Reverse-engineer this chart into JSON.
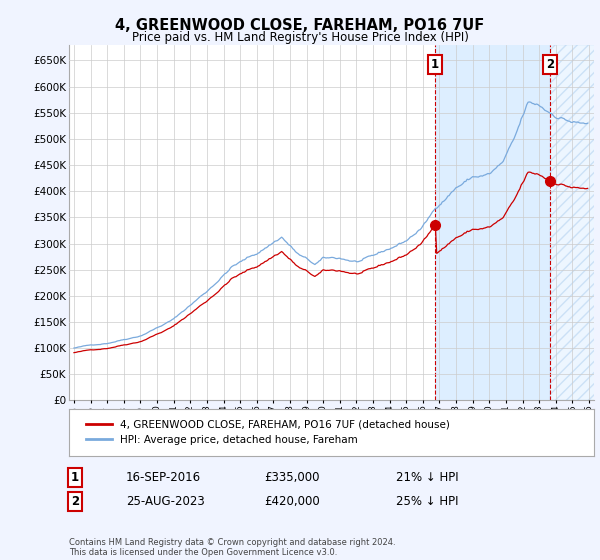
{
  "title": "4, GREENWOOD CLOSE, FAREHAM, PO16 7UF",
  "subtitle": "Price paid vs. HM Land Registry's House Price Index (HPI)",
  "hpi_color": "#7aaadd",
  "price_color": "#cc0000",
  "marker_color": "#cc0000",
  "vline_color": "#cc0000",
  "ylim": [
    0,
    680000
  ],
  "yticks": [
    0,
    50000,
    100000,
    150000,
    200000,
    250000,
    300000,
    350000,
    400000,
    450000,
    500000,
    550000,
    600000,
    650000
  ],
  "sale1_year": 2016.71,
  "sale1_value": 335000,
  "sale2_year": 2023.65,
  "sale2_value": 420000,
  "legend_house": "4, GREENWOOD CLOSE, FAREHAM, PO16 7UF (detached house)",
  "legend_hpi": "HPI: Average price, detached house, Fareham",
  "sale1_date": "16-SEP-2016",
  "sale1_price": "£335,000",
  "sale1_pct": "21% ↓ HPI",
  "sale2_date": "25-AUG-2023",
  "sale2_price": "£420,000",
  "sale2_pct": "25% ↓ HPI",
  "footer": "Contains HM Land Registry data © Crown copyright and database right 2024.\nThis data is licensed under the Open Government Licence v3.0.",
  "bg_color": "#f0f4ff",
  "plot_bg": "#ffffff",
  "shade_color": "#ddeeff",
  "hatch_color": "#ddeeff"
}
